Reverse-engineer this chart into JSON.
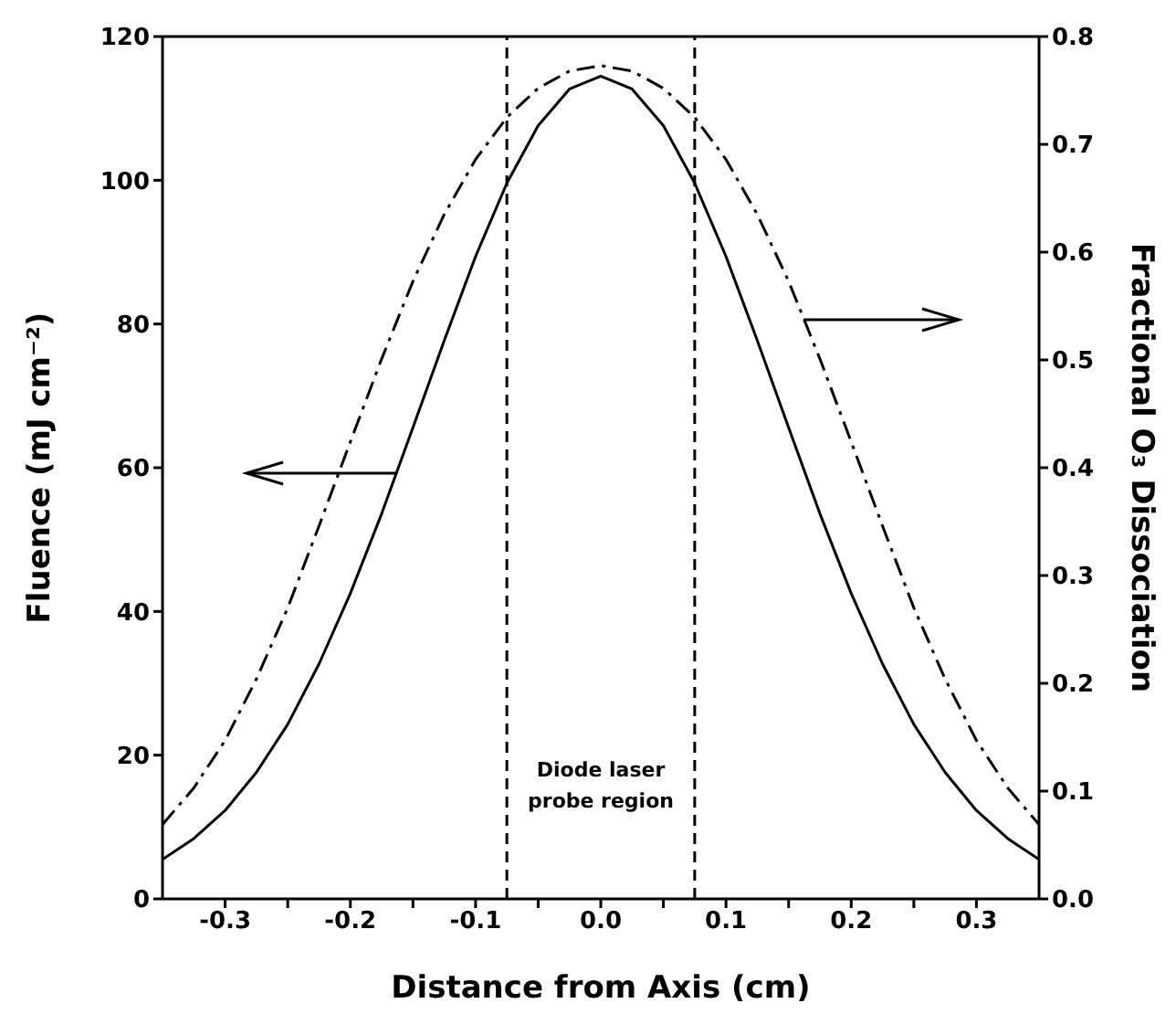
{
  "chart_data": {
    "type": "line",
    "xlabel": "Distance from Axis (cm)",
    "ylabel": "Fluence (mJ cm⁻²)",
    "y2label": "Fractional O₃ Dissociation",
    "x": [
      -0.35,
      -0.325,
      -0.3,
      -0.275,
      -0.25,
      -0.225,
      -0.2,
      -0.175,
      -0.15,
      -0.125,
      -0.1,
      -0.075,
      -0.05,
      -0.025,
      0,
      0.025,
      0.05,
      0.075,
      0.1,
      0.125,
      0.15,
      0.175,
      0.2,
      0.225,
      0.25,
      0.275,
      0.3,
      0.325,
      0.35
    ],
    "series": [
      {
        "type": "line",
        "color": "#000000",
        "line_style": "solid",
        "values": [
          5.5,
          8.4,
          12.3,
          17.6,
          24.3,
          32.7,
          42.5,
          53.6,
          65.6,
          77.7,
          89.4,
          99.6,
          107.6,
          112.7,
          114.5,
          112.7,
          107.6,
          99.6,
          89.4,
          77.7,
          65.6,
          53.6,
          42.5,
          32.7,
          24.3,
          17.6,
          12.3,
          8.4,
          5.5
        ]
      },
      {
        "type": "line",
        "color": "#000000",
        "line_style": "dashed",
        "axis": "y2",
        "values": [
          0.069,
          0.103,
          0.147,
          0.204,
          0.27,
          0.346,
          0.424,
          0.501,
          0.573,
          0.635,
          0.686,
          0.725,
          0.752,
          0.768,
          0.773,
          0.768,
          0.752,
          0.725,
          0.686,
          0.635,
          0.573,
          0.501,
          0.424,
          0.346,
          0.27,
          0.204,
          0.147,
          0.103,
          0.069
        ]
      }
    ],
    "xlim": [
      -0.35,
      0.35
    ],
    "xticks": [
      -0.3,
      {
        "value": -0.25,
        "label": null
      },
      -0.2,
      {
        "value": -0.15,
        "label": null
      },
      -0.1,
      {
        "value": -0.05,
        "label": null
      },
      {
        "value": 0,
        "label": "0.0"
      },
      {
        "value": 0.05,
        "label": null
      },
      0.1,
      {
        "value": 0.15,
        "label": null
      },
      0.2,
      {
        "value": 0.25,
        "label": null
      },
      0.3
    ],
    "ylim": [
      0,
      120
    ],
    "yticks": [
      0,
      20,
      40,
      60,
      80,
      100,
      120
    ],
    "y2lim": [
      0,
      0.8
    ],
    "y2ticks": [
      {
        "value": 0,
        "label": "0.0"
      },
      0.1,
      0.2,
      0.3,
      0.4,
      0.5,
      0.6,
      0.7,
      0.8
    ],
    "ref_lines": [
      {
        "axis": "x",
        "value": -0.075,
        "color": "#000000",
        "line_style": "dashed"
      },
      {
        "axis": "x",
        "value": 0.075,
        "color": "#000000",
        "line_style": "dashed"
      }
    ],
    "annotations": [
      "Diode laser probe region"
    ]
  }
}
